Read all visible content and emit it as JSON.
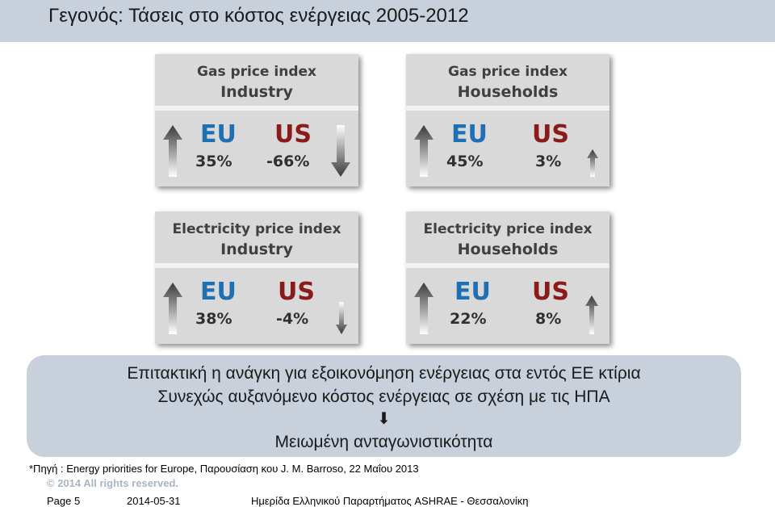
{
  "slide": {
    "title": "Γεγονός: Τάσεις στο κόστος ενέργειας 2005-2012"
  },
  "cards": [
    {
      "line1": "Gas price index",
      "line2": "Industry",
      "eu_label": "EU",
      "eu_value": "35%",
      "us_label": "US",
      "us_value": "-66%"
    },
    {
      "line1": "Gas price index",
      "line2": "Households",
      "eu_label": "EU",
      "eu_value": "45%",
      "us_label": "US",
      "us_value": "3%"
    },
    {
      "line1": "Electricity price index",
      "line2": "Industry",
      "eu_label": "EU",
      "eu_value": "38%",
      "us_label": "US",
      "us_value": "-4%"
    },
    {
      "line1": "Electricity price index",
      "line2": "Households",
      "eu_label": "EU",
      "eu_value": "22%",
      "us_label": "US",
      "us_value": "8%"
    }
  ],
  "banner": {
    "line1": "Επιτακτική η ανάγκη για εξοικονόμηση ενέργειας στα εντός ΕΕ κτίρια",
    "line2": "Συνεχώς αυξανόμενο κόστος ενέργειας σε σχέση με τις ΗΠΑ",
    "arrow_glyph": "⬇",
    "line3": "Μειωμένη ανταγωνιστικότητα"
  },
  "source": "*Πηγή : Energy priorities for Europe, Παρουσίαση κου J. M. Barroso, 22 Μαΐου 2013",
  "copyright": "© 2014 All rights reserved.",
  "footer": {
    "page": "Page 5",
    "date": "2014-05-31",
    "event": "Ημερίδα Ελληνικού Παραρτήματος ASHRAE - Θεσσαλονίκη"
  },
  "colors": {
    "eu": "#1f6fb5",
    "us": "#8b1a1a",
    "card_bg": "#d9d9d9",
    "title_bar": "#c8d0dc"
  },
  "icons": [
    "arrow-up-icon",
    "arrow-down-icon"
  ]
}
